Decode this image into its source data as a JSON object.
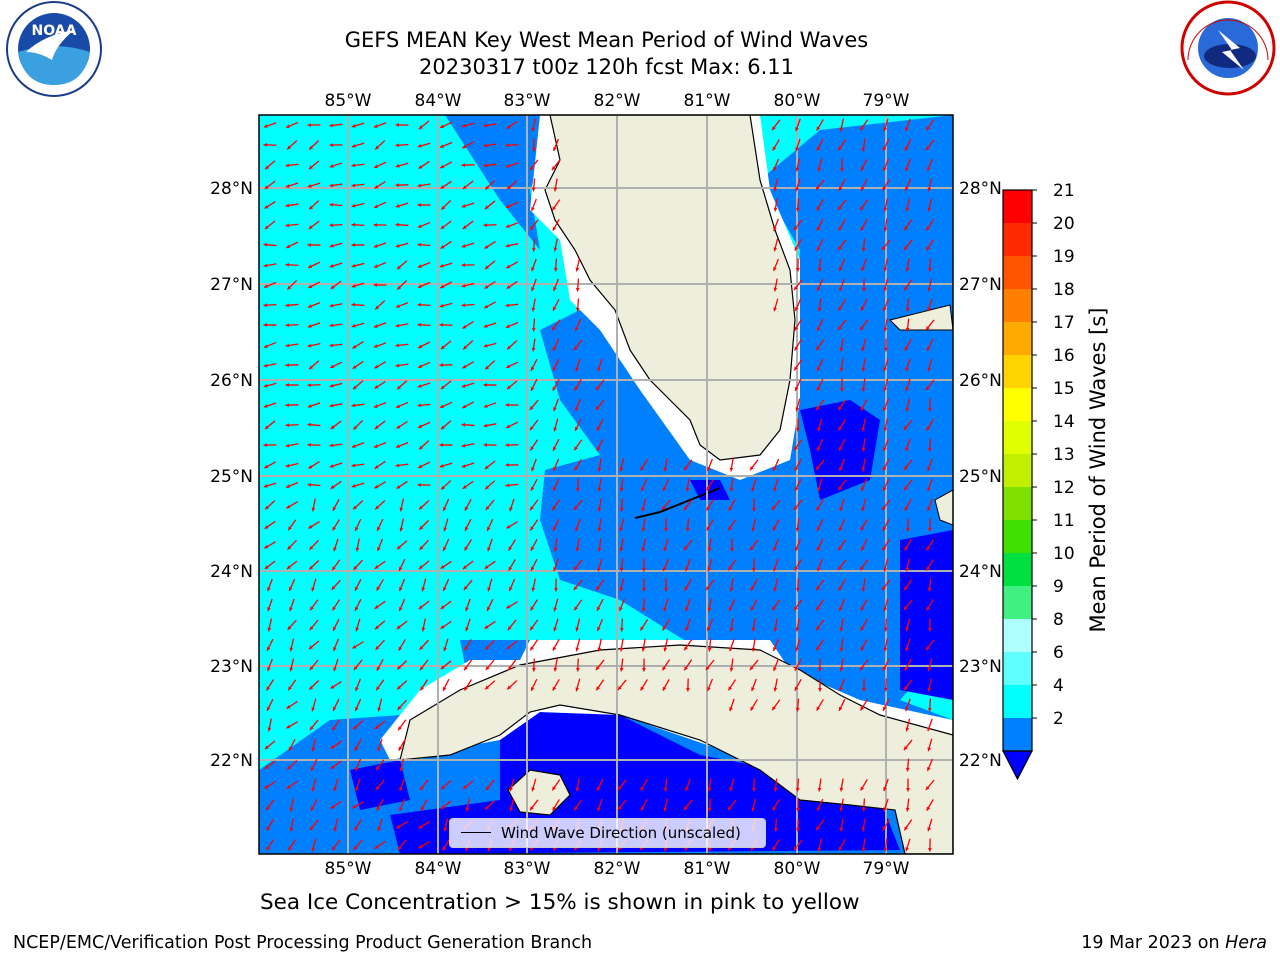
{
  "title": {
    "line1": "GEFS MEAN Key West Mean Period of Wind Waves",
    "line2": "20230317 t00z 120h fcst   Max: 6.11"
  },
  "map": {
    "lon_labels": [
      "85°W",
      "84°W",
      "83°W",
      "82°W",
      "81°W",
      "80°W",
      "79°W"
    ],
    "lat_labels": [
      "28°N",
      "27°N",
      "26°N",
      "25°N",
      "24°N",
      "23°N",
      "22°N"
    ],
    "legend_label": "Wind Wave Direction (unscaled)",
    "colors": {
      "ocean_light": "#00ffff",
      "ocean_mid": "#0080ff",
      "ocean_deep": "#0000ff",
      "land": "#eeeedd",
      "arrow": "#ff0000",
      "grid": "#b0b0b0"
    }
  },
  "colorbar": {
    "title": "Mean Period of Wind Waves [s]",
    "tick_labels": [
      "21",
      "20",
      "19",
      "18",
      "17",
      "16",
      "15",
      "14",
      "13",
      "12",
      "11",
      "10",
      "9",
      "8",
      "6",
      "4",
      "2"
    ],
    "bands_top_to_bottom": [
      "#ff0000",
      "#ff2a00",
      "#ff5500",
      "#ff8000",
      "#ffaa00",
      "#ffd400",
      "#ffff00",
      "#e0ff00",
      "#c0f000",
      "#80e000",
      "#40e000",
      "#00e040",
      "#40f080",
      "#b0ffff",
      "#60ffff",
      "#00ffff",
      "#0080ff"
    ],
    "extend_color": "#0000ff"
  },
  "caption": "Sea Ice Concentration > 15% is shown in pink to yellow",
  "footer": {
    "left": "NCEP/EMC/Verification Post Processing Product Generation Branch",
    "right_date": "19 Mar 2023 on ",
    "right_host": "Hera"
  },
  "logos": {
    "left": "NOAA",
    "right": "NATIONAL WEATHER SERVICE"
  }
}
